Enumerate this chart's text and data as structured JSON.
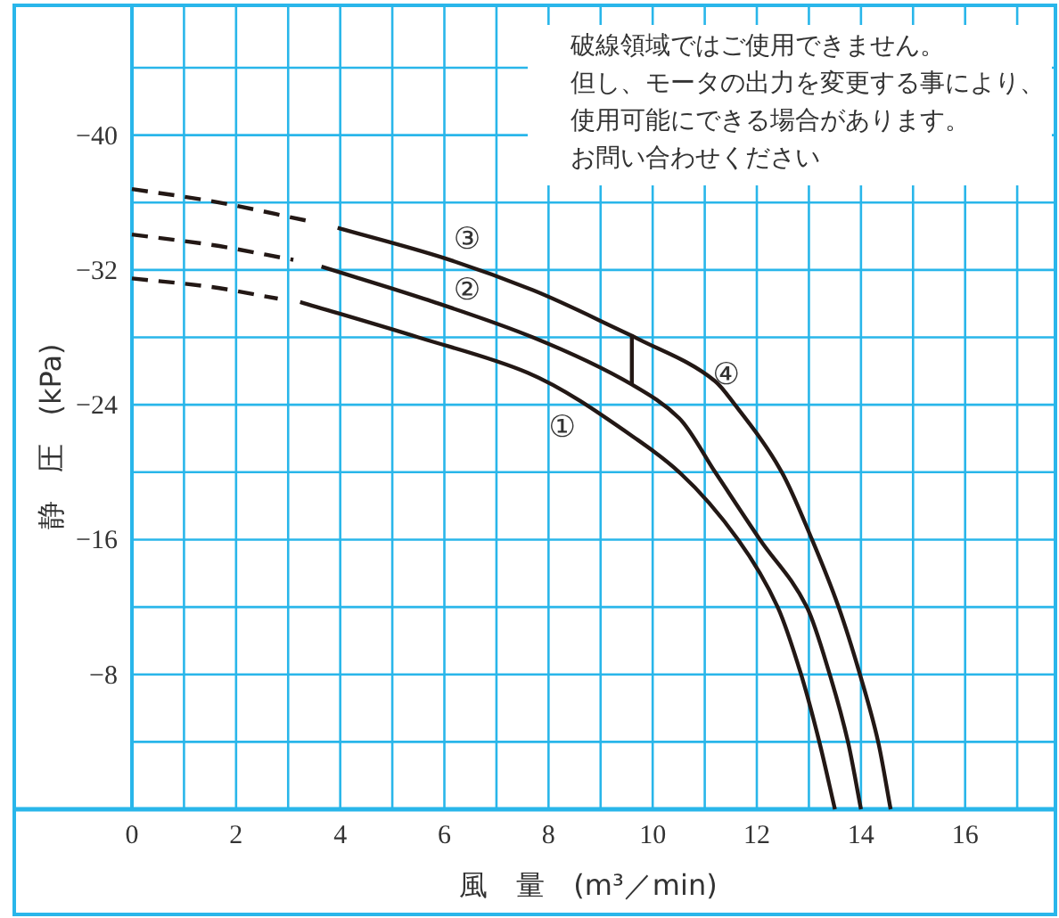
{
  "chart_data": {
    "type": "line",
    "xlabel": "風　量　(m³／min)",
    "ylabel": "静　圧　(kPa)",
    "xlim": [
      0,
      17.7
    ],
    "ylim": [
      0,
      -47.7
    ],
    "xticks": [
      0,
      {
        "value": 1,
        "label": null
      },
      2,
      {
        "value": 3,
        "label": null
      },
      4,
      {
        "value": 5,
        "label": null
      },
      6,
      {
        "value": 7,
        "label": null
      },
      8,
      {
        "value": 9,
        "label": null
      },
      10,
      {
        "value": 11,
        "label": null
      },
      12,
      {
        "value": 13,
        "label": null
      },
      14,
      {
        "value": 15,
        "label": null
      },
      16,
      {
        "value": 17,
        "label": null
      }
    ],
    "yticks": [
      {
        "value": -4,
        "label": null
      },
      -8,
      {
        "value": -12,
        "label": null
      },
      -16,
      {
        "value": -20,
        "label": null
      },
      -24,
      {
        "value": -28,
        "label": null
      },
      -32,
      {
        "value": -36,
        "label": null
      },
      -40,
      {
        "value": -44,
        "label": null
      }
    ],
    "grid": true,
    "series": [
      {
        "color": "#231815",
        "line_style": "dashed",
        "x": [
          0,
          1.5,
          3.4
        ],
        "values": [
          -36.8,
          -36.1,
          -34.9
        ]
      },
      {
        "name": "③",
        "color": "#231815",
        "line_style": "solid",
        "x": [
          3.95,
          6,
          7.7,
          9.6,
          9.6
        ],
        "values": [
          -34.5,
          -32.7,
          -30.8,
          -28.1,
          -25.2
        ]
      },
      {
        "name": "④",
        "color": "#231815",
        "line_style": "solid",
        "x": [
          9.6,
          11.2,
          11.58,
          12.48,
          13.06,
          13.57,
          13.98,
          14.33,
          14.57
        ],
        "values": [
          -28.1,
          -25.4,
          -24.0,
          -20,
          -16,
          -12,
          -8,
          -4,
          0
        ]
      },
      {
        "color": "#231815",
        "line_style": "dashed",
        "x": [
          0,
          1.5,
          3.1
        ],
        "values": [
          -34.1,
          -33.5,
          -32.6
        ]
      },
      {
        "name": "②",
        "color": "#231815",
        "line_style": "solid",
        "x": [
          3.64,
          5.7,
          7.7,
          9.6,
          10.51,
          11.2,
          12.06,
          12.96,
          13.4,
          13.75,
          14.0
        ],
        "values": [
          -32.2,
          -30.2,
          -28.0,
          -25.2,
          -23.2,
          -20,
          -16,
          -12,
          -8,
          -4,
          0
        ]
      },
      {
        "color": "#231815",
        "line_style": "dashed",
        "x": [
          0,
          1.5,
          2.8
        ],
        "values": [
          -31.5,
          -31.0,
          -30.3
        ]
      },
      {
        "name": "①",
        "color": "#231815",
        "line_style": "solid",
        "x": [
          3.23,
          5.5,
          7.6,
          9.72,
          10.51,
          11.64,
          12.4,
          12.85,
          13.2,
          13.5
        ],
        "values": [
          -30.1,
          -28.0,
          -25.9,
          -21.9,
          -20,
          -16,
          -12,
          -8,
          -4,
          0
        ]
      }
    ],
    "annotations": [
      "破線領域ではご使用できません。",
      "但し、モータの出力を変更する事により、",
      "使用可能にできる場合があります。",
      "お問い合わせください"
    ]
  }
}
